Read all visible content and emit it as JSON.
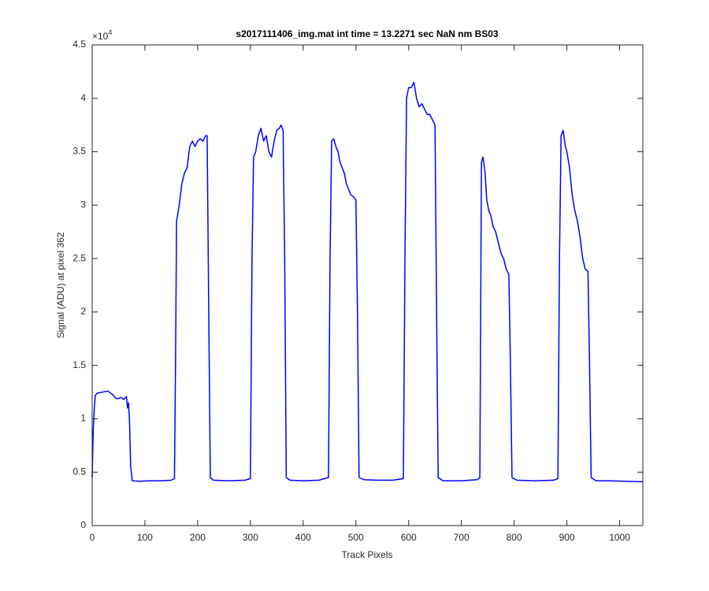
{
  "chart_data": {
    "type": "line",
    "title": "s2017111406_img.mat int time = 13.2271 sec  NaN nm BS03",
    "x_label": "Track Pixels",
    "y_label": "Signal (ADU) at pixel 362",
    "y_multiplier": "×10",
    "y_multiplier_exponent": "4",
    "xlim": [
      0,
      1044
    ],
    "ylim": [
      0,
      4.5
    ],
    "xticks": [
      0,
      100,
      200,
      300,
      400,
      500,
      600,
      700,
      800,
      900,
      1000
    ],
    "yticks": [
      0,
      0.5,
      1,
      1.5,
      2,
      2.5,
      3,
      3.5,
      4,
      4.5
    ],
    "x": [
      0,
      2,
      4,
      6,
      10,
      20,
      30,
      35,
      40,
      45,
      50,
      55,
      60,
      65,
      67,
      69,
      71,
      73,
      76,
      90,
      110,
      130,
      150,
      156,
      158,
      160,
      165,
      170,
      175,
      180,
      185,
      190,
      195,
      200,
      205,
      210,
      215,
      218,
      221,
      224,
      230,
      260,
      290,
      300,
      303,
      306,
      310,
      315,
      320,
      325,
      330,
      335,
      340,
      345,
      350,
      355,
      358,
      362,
      365,
      368,
      375,
      400,
      430,
      448,
      451,
      454,
      458,
      462,
      466,
      470,
      474,
      478,
      482,
      486,
      490,
      495,
      500,
      503,
      506,
      515,
      540,
      570,
      590,
      593,
      596,
      600,
      605,
      610,
      615,
      620,
      625,
      630,
      635,
      640,
      645,
      650,
      653,
      656,
      665,
      700,
      730,
      735,
      738,
      741,
      745,
      748,
      752,
      756,
      760,
      765,
      770,
      775,
      780,
      785,
      790,
      793,
      796,
      805,
      840,
      875,
      883,
      886,
      889,
      893,
      897,
      900,
      905,
      910,
      915,
      920,
      925,
      930,
      935,
      940,
      943,
      946,
      955,
      980,
      1010,
      1044
    ],
    "series": [
      {
        "name": "signal",
        "color": "#0000ff",
        "values": [
          0.45,
          0.9,
          1.1,
          1.22,
          1.24,
          1.25,
          1.26,
          1.24,
          1.22,
          1.19,
          1.19,
          1.2,
          1.18,
          1.21,
          1.1,
          1.15,
          0.95,
          0.55,
          0.42,
          0.415,
          0.42,
          0.42,
          0.425,
          0.44,
          1.5,
          2.85,
          3.0,
          3.2,
          3.3,
          3.35,
          3.55,
          3.6,
          3.55,
          3.6,
          3.62,
          3.6,
          3.65,
          3.65,
          2.0,
          0.45,
          0.425,
          0.42,
          0.425,
          0.44,
          2.5,
          3.45,
          3.5,
          3.65,
          3.72,
          3.6,
          3.65,
          3.5,
          3.45,
          3.6,
          3.7,
          3.72,
          3.75,
          3.7,
          2.5,
          0.45,
          0.425,
          0.42,
          0.425,
          0.45,
          2.5,
          3.6,
          3.62,
          3.55,
          3.5,
          3.4,
          3.35,
          3.3,
          3.2,
          3.15,
          3.1,
          3.08,
          3.05,
          2.0,
          0.45,
          0.43,
          0.425,
          0.425,
          0.44,
          2.5,
          4.0,
          4.1,
          4.1,
          4.15,
          4.0,
          3.92,
          3.95,
          3.9,
          3.85,
          3.85,
          3.8,
          3.75,
          2.0,
          0.45,
          0.42,
          0.42,
          0.43,
          0.45,
          3.4,
          3.45,
          3.3,
          3.05,
          2.95,
          2.9,
          2.8,
          2.75,
          2.65,
          2.55,
          2.5,
          2.4,
          2.35,
          1.5,
          0.45,
          0.425,
          0.42,
          0.425,
          0.44,
          2.5,
          3.65,
          3.7,
          3.55,
          3.5,
          3.35,
          3.1,
          2.95,
          2.85,
          2.7,
          2.5,
          2.4,
          2.38,
          1.5,
          0.45,
          0.42,
          0.42,
          0.415,
          0.41
        ]
      }
    ]
  }
}
